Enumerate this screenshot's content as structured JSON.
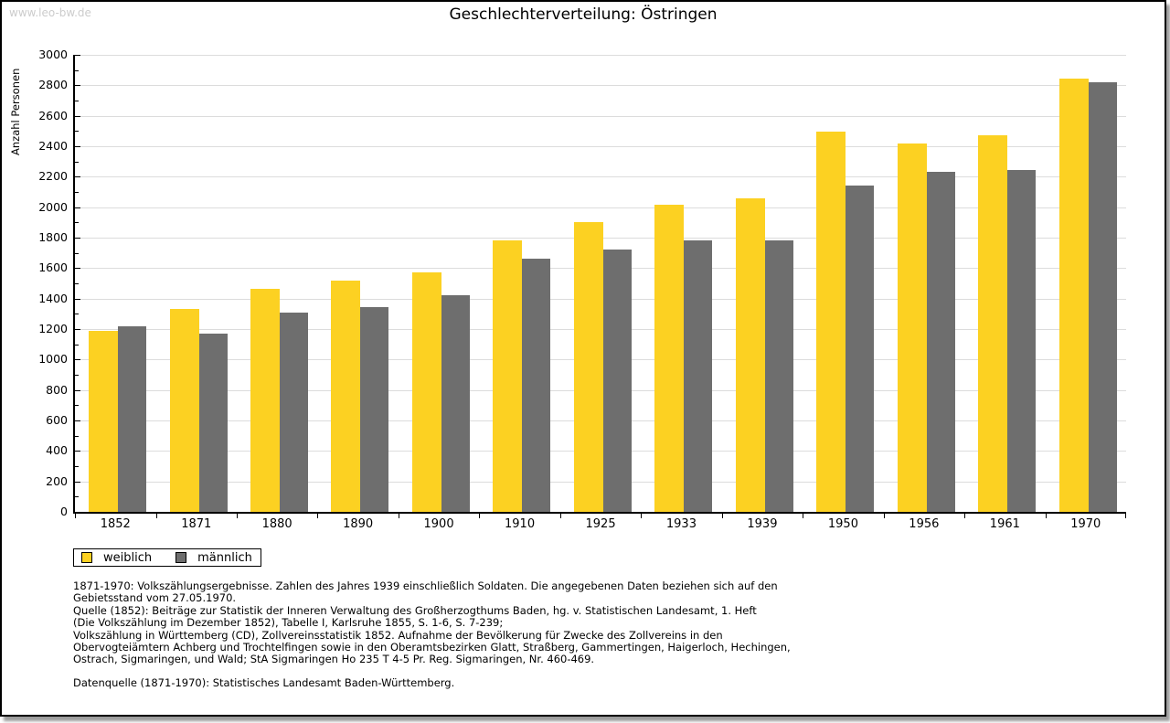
{
  "watermark": "www.leo-bw.de",
  "title": "Geschlechterverteilung: Östringen",
  "chart_data": {
    "type": "bar",
    "title": "Geschlechterverteilung: Östringen",
    "xlabel": "",
    "ylabel": "Anzahl Personen",
    "ylim": [
      0,
      3000
    ],
    "ytick_step": 200,
    "minor_tick_step": 100,
    "grid": true,
    "legend_position": "bottom-left",
    "categories": [
      "1852",
      "1871",
      "1880",
      "1890",
      "1900",
      "1910",
      "1925",
      "1933",
      "1939",
      "1950",
      "1956",
      "1961",
      "1970"
    ],
    "series": [
      {
        "name": "weiblich",
        "color": "#FCD122",
        "values": [
          1190,
          1330,
          1465,
          1520,
          1570,
          1780,
          1905,
          2015,
          2060,
          2495,
          2420,
          2470,
          2845
        ]
      },
      {
        "name": "männlich",
        "color": "#6E6E6E",
        "values": [
          1220,
          1170,
          1310,
          1345,
          1425,
          1660,
          1720,
          1785,
          1785,
          2140,
          2230,
          2245,
          2820
        ]
      }
    ]
  },
  "legend": {
    "items": [
      {
        "label": "weiblich",
        "color": "#FCD122"
      },
      {
        "label": "männlich",
        "color": "#6E6E6E"
      }
    ]
  },
  "footnotes": {
    "lines": [
      "1871-1970: Volkszählungsergebnisse. Zahlen des Jahres 1939 einschließlich Soldaten. Die angegebenen Daten beziehen sich auf den",
      "Gebietsstand vom 27.05.1970.",
      "Quelle (1852): Beiträge zur Statistik der Inneren Verwaltung des Großherzogthums Baden, hg. v. Statistischen Landesamt, 1. Heft",
      "(Die Volkszählung im Dezember 1852), Tabelle I, Karlsruhe 1855, S. 1-6, S. 7-239;",
      "Volkszählung in Württemberg (CD), Zollvereinsstatistik 1852. Aufnahme der Bevölkerung für Zwecke des Zollvereins in den",
      "Obervogteiämtern Achberg und Trochtelfingen sowie in den Oberamtsbezirken Glatt, Straßberg, Gammertingen, Haigerloch, Hechingen,",
      "Ostrach, Sigmaringen, und Wald; StA Sigmaringen Ho 235 T 4-5 Pr. Reg. Sigmaringen, Nr. 460-469."
    ],
    "datasource": "Datenquelle (1871-1970): Statistisches Landesamt Baden-Württemberg."
  },
  "colors": {
    "grid": "#DCDCDC",
    "axis": "#000000",
    "watermark": "#CCCCCC"
  }
}
